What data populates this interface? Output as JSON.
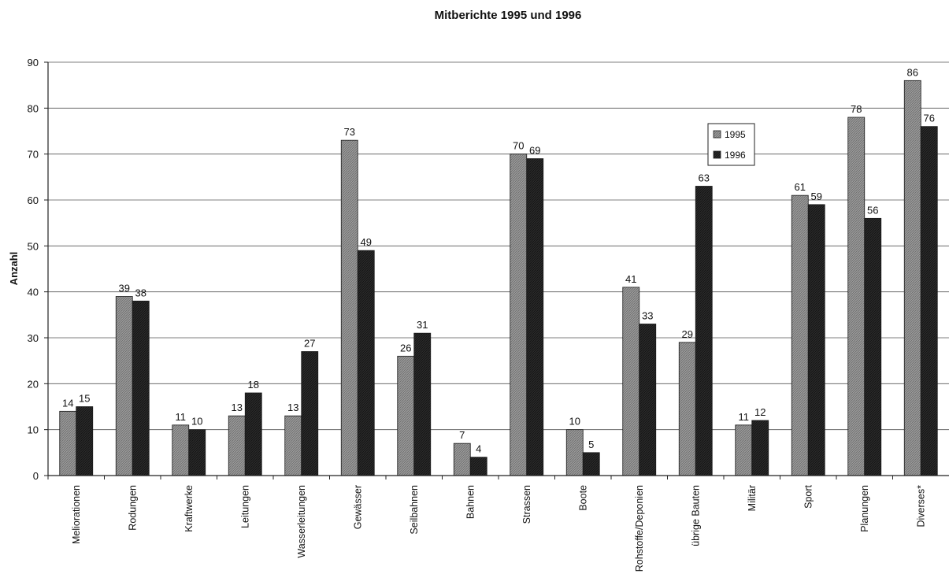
{
  "chart_data": {
    "type": "bar",
    "title": "Mitberichte 1995 und 1996",
    "xlabel": "",
    "ylabel": "Anzahl",
    "ylim": [
      0,
      90
    ],
    "yticks": [
      0,
      10,
      20,
      30,
      40,
      50,
      60,
      70,
      80,
      90
    ],
    "grid": true,
    "legend_position": "upper-right",
    "categories": [
      "Meliorationen",
      "Rodungen",
      "Kraftwerke",
      "Leitungen",
      "Wasserleitungen",
      "Gewässer",
      "Seilbahnen",
      "Bahnen",
      "Strassen",
      "Boote",
      "Rohstoffe/Deponien",
      "übrige Bauten",
      "Militär",
      "Sport",
      "Planungen",
      "Diverses*"
    ],
    "series": [
      {
        "name": "1995",
        "color": "#8c8c8c",
        "values": [
          14,
          39,
          11,
          13,
          13,
          73,
          26,
          7,
          70,
          10,
          41,
          29,
          11,
          61,
          78,
          86
        ]
      },
      {
        "name": "1996",
        "color": "#262626",
        "values": [
          15,
          38,
          10,
          18,
          27,
          49,
          31,
          4,
          69,
          5,
          33,
          63,
          12,
          59,
          56,
          76
        ]
      }
    ]
  }
}
